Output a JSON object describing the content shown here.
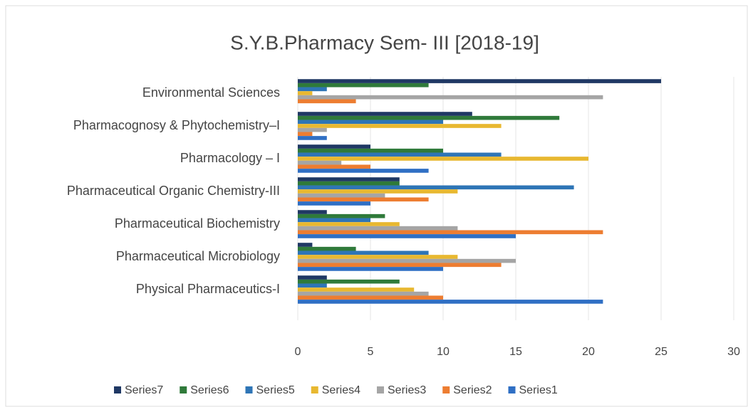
{
  "chart_data": {
    "type": "hbar",
    "title": "S.Y.B.Pharmacy Sem- III [2018-19]",
    "categories": [
      "Environmental Sciences",
      "Pharmacognosy & Phytochemistry–I",
      "Pharmacology – I",
      "Pharmaceutical Organic Chemistry-III",
      "Pharmaceutical Biochemistry",
      "Pharmaceutical Microbiology",
      "Physical Pharmaceutics-I"
    ],
    "series": [
      {
        "name": "Series7",
        "color": "#1f3864",
        "values": [
          25,
          12,
          5,
          7,
          2,
          1,
          2
        ]
      },
      {
        "name": "Series6",
        "color": "#2f7a3a",
        "values": [
          9,
          18,
          10,
          7,
          6,
          4,
          7
        ]
      },
      {
        "name": "Series5",
        "color": "#2e75b6",
        "values": [
          2,
          10,
          14,
          19,
          5,
          9,
          2
        ]
      },
      {
        "name": "Series4",
        "color": "#e8b830",
        "values": [
          1,
          14,
          20,
          11,
          7,
          11,
          8
        ]
      },
      {
        "name": "Series3",
        "color": "#a5a5a5",
        "values": [
          21,
          2,
          3,
          6,
          11,
          15,
          9
        ]
      },
      {
        "name": "Series2",
        "color": "#ed7d31",
        "values": [
          4,
          1,
          5,
          9,
          21,
          14,
          10
        ]
      },
      {
        "name": "Series1",
        "color": "#2f6fc4",
        "values": [
          0,
          2,
          9,
          5,
          15,
          10,
          21
        ]
      }
    ],
    "xlim": [
      0,
      30
    ],
    "xticks": [
      0,
      5,
      10,
      15,
      20,
      25,
      30
    ],
    "grid": true,
    "legend": "bottom"
  }
}
